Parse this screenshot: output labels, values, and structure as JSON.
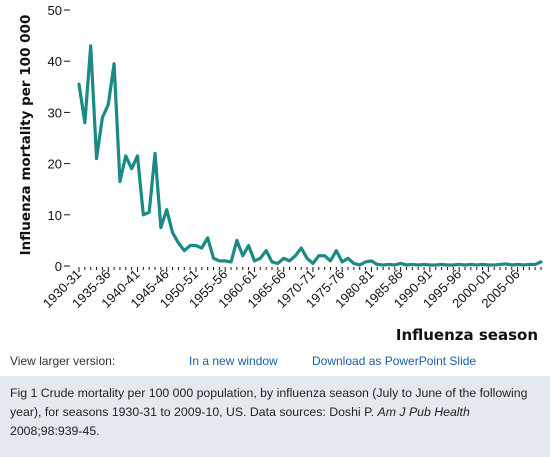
{
  "chart_data": {
    "type": "line",
    "title": "",
    "xlabel": "Influenza season",
    "ylabel": "Influenza mortality per 100 000",
    "ylim": [
      0,
      50
    ],
    "yticks": [
      0,
      10,
      20,
      30,
      40,
      50
    ],
    "grid": false,
    "line_color": "#1a8a85",
    "x_tick_labels": [
      "1930-31",
      "1935-36",
      "1940-41",
      "1945-46",
      "1950-51",
      "1955-56",
      "1960-61",
      "1965-66",
      "1970-71",
      "1975-76",
      "1980-81",
      "1985-86",
      "1990-91",
      "1995-96",
      "2000-01",
      "2005-06"
    ],
    "x": [
      "1930-31",
      "1931-32",
      "1932-33",
      "1933-34",
      "1934-35",
      "1935-36",
      "1936-37",
      "1937-38",
      "1938-39",
      "1939-40",
      "1940-41",
      "1941-42",
      "1942-43",
      "1943-44",
      "1944-45",
      "1945-46",
      "1946-47",
      "1947-48",
      "1948-49",
      "1949-50",
      "1950-51",
      "1951-52",
      "1952-53",
      "1953-54",
      "1954-55",
      "1955-56",
      "1956-57",
      "1957-58",
      "1958-59",
      "1959-60",
      "1960-61",
      "1961-62",
      "1962-63",
      "1963-64",
      "1964-65",
      "1965-66",
      "1966-67",
      "1967-68",
      "1968-69",
      "1969-70",
      "1970-71",
      "1971-72",
      "1972-73",
      "1973-74",
      "1974-75",
      "1975-76",
      "1976-77",
      "1977-78",
      "1978-79",
      "1979-80",
      "1980-81",
      "1981-82",
      "1982-83",
      "1983-84",
      "1984-85",
      "1985-86",
      "1986-87",
      "1987-88",
      "1988-89",
      "1989-90",
      "1990-91",
      "1991-92",
      "1992-93",
      "1993-94",
      "1994-95",
      "1995-96",
      "1996-97",
      "1997-98",
      "1998-99",
      "1999-00",
      "2000-01",
      "2001-02",
      "2002-03",
      "2003-04",
      "2004-05",
      "2005-06",
      "2006-07",
      "2007-08",
      "2008-09",
      "2009-10"
    ],
    "series": [
      {
        "values": [
          35.5,
          28,
          43,
          21,
          29,
          31.5,
          39.5,
          16.5,
          21.5,
          19,
          21.5,
          10,
          10.5,
          22,
          7.5,
          11,
          6.5,
          4.5,
          3,
          4,
          4,
          3.5,
          5.5,
          1.5,
          1,
          1,
          0.8,
          5,
          2,
          4,
          1,
          1.5,
          3,
          0.8,
          0.5,
          1.5,
          1,
          2,
          3.5,
          1.5,
          0.5,
          2,
          2,
          1,
          3,
          0.8,
          1.5,
          0.5,
          0.2,
          0.8,
          1,
          0.3,
          0.2,
          0.3,
          0.2,
          0.5,
          0.2,
          0.3,
          0.2,
          0.3,
          0.2,
          0.2,
          0.3,
          0.2,
          0.2,
          0.3,
          0.2,
          0.3,
          0.2,
          0.3,
          0.2,
          0.2,
          0.3,
          0.4,
          0.2,
          0.3,
          0.2,
          0.3,
          0.3,
          0.8
        ]
      }
    ]
  },
  "links": {
    "view_larger": "View larger version:",
    "new_window": "In a new window",
    "powerpoint": "Download as PowerPoint Slide"
  },
  "caption": {
    "part1": "Fig 1 Crude mortality per 100 000 population, by influenza season (July to June of the following year), for seasons 1930-31 to 2009-10, US. Data sources: Doshi P. ",
    "journal": "Am J Pub Health",
    "part2": " 2008;98:939-45."
  }
}
